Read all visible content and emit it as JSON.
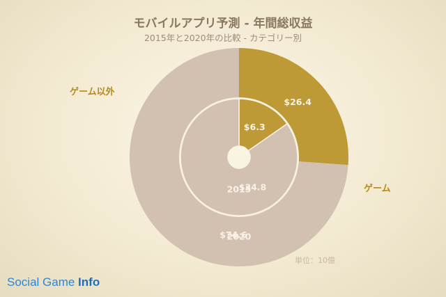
{
  "colors": {
    "game": "#d2c0b1",
    "non_game": "#bd9a35",
    "label": "#f8f2e6",
    "legend": "#b58a1a"
  },
  "legend_labels": {
    "non_game": "ゲーム以外",
    "game": "ゲーム"
  },
  "unit_note": "単位：10億",
  "watermark": {
    "prefix": "Social Game ",
    "suffix": "Info"
  },
  "chart_data": {
    "type": "pie",
    "title": "モバイルアプリ予測 - 年間総収益",
    "subtitle": "2015年と2020年の比較 - カテゴリー別",
    "categories": [
      "ゲーム以外",
      "ゲーム"
    ],
    "series": [
      {
        "name": "2020",
        "ring": "outer",
        "values": [
          26.4,
          74.6
        ],
        "value_labels": [
          "$26.4",
          "$74.6"
        ]
      },
      {
        "name": "2015",
        "ring": "inner",
        "values": [
          6.3,
          34.8
        ],
        "value_labels": [
          "$6.3",
          "$34.8"
        ]
      }
    ]
  }
}
